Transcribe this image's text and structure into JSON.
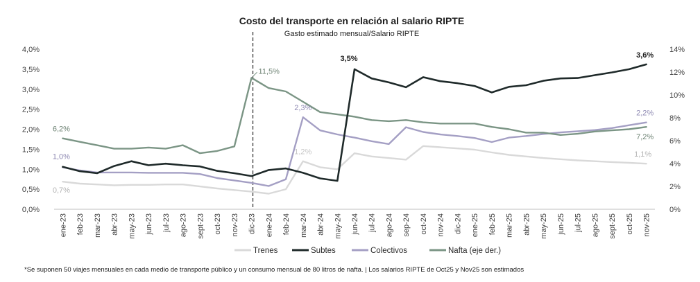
{
  "chart_data": {
    "type": "line",
    "title": "Costo del transporte en relación al salario RIPTE",
    "subtitle": "Gasto estimado mensual/Salario RIPTE",
    "categories": [
      "ene-23",
      "feb-23",
      "mar-23",
      "abr-23",
      "may-23",
      "jun-23",
      "jul-23",
      "ago-23",
      "sept-23",
      "oct-23",
      "nov-23",
      "dic-23",
      "ene-24",
      "feb-24",
      "mar-24",
      "abr-24",
      "may-24",
      "jun-24",
      "jul-24",
      "ago-24",
      "sep-24",
      "oct-24",
      "nov-24",
      "dic-24",
      "ene-25",
      "feb-25",
      "mar-25",
      "abr-25",
      "may-25",
      "jun-25",
      "jul-25",
      "ago-25",
      "sept-25",
      "oct-25",
      "nov-25"
    ],
    "y_left": {
      "min": 0,
      "max": 4,
      "ticks": [
        "0,0%",
        "0,5%",
        "1,0%",
        "1,5%",
        "2,0%",
        "2,5%",
        "3,0%",
        "3,5%",
        "4,0%"
      ]
    },
    "y_right": {
      "min": 0,
      "max": 14,
      "ticks": [
        "0%",
        "2%",
        "4%",
        "6%",
        "8%",
        "10%",
        "12%",
        "14%"
      ]
    },
    "series": [
      {
        "name": "Trenes",
        "axis": "left",
        "color": "#d9d9d9",
        "values": [
          0.69,
          0.64,
          0.62,
          0.6,
          0.61,
          0.61,
          0.62,
          0.62,
          0.57,
          0.52,
          0.48,
          0.44,
          0.39,
          0.5,
          1.2,
          1.05,
          1.0,
          1.4,
          1.32,
          1.28,
          1.24,
          1.58,
          1.55,
          1.52,
          1.49,
          1.42,
          1.36,
          1.32,
          1.28,
          1.25,
          1.22,
          1.2,
          1.18,
          1.16,
          1.14
        ]
      },
      {
        "name": "Subtes",
        "axis": "left",
        "color": "#1f2a2a",
        "values": [
          1.06,
          0.95,
          0.9,
          1.08,
          1.2,
          1.1,
          1.14,
          1.1,
          1.07,
          0.96,
          0.9,
          0.83,
          0.98,
          1.02,
          0.91,
          0.77,
          0.71,
          3.5,
          3.27,
          3.17,
          3.05,
          3.3,
          3.2,
          3.15,
          3.08,
          2.92,
          3.06,
          3.1,
          3.21,
          3.27,
          3.28,
          3.35,
          3.42,
          3.5,
          3.62
        ]
      },
      {
        "name": "Colectivos",
        "axis": "left",
        "color": "#a49fc4",
        "values": [
          1.05,
          0.97,
          0.92,
          0.92,
          0.92,
          0.91,
          0.91,
          0.91,
          0.88,
          0.78,
          0.72,
          0.66,
          0.58,
          0.75,
          2.3,
          1.97,
          1.87,
          1.79,
          1.7,
          1.63,
          2.05,
          1.93,
          1.87,
          1.83,
          1.78,
          1.68,
          1.79,
          1.83,
          1.88,
          1.92,
          1.95,
          1.98,
          2.03,
          2.1,
          2.17
        ]
      },
      {
        "name": "Nafta (eje der.)",
        "axis": "right",
        "color": "#7b9585",
        "values": [
          6.2,
          5.9,
          5.6,
          5.3,
          5.3,
          5.4,
          5.3,
          5.6,
          4.9,
          5.1,
          5.5,
          11.5,
          10.6,
          10.3,
          9.4,
          8.5,
          8.3,
          8.1,
          7.8,
          7.7,
          7.8,
          7.6,
          7.5,
          7.5,
          7.5,
          7.2,
          7.0,
          6.7,
          6.7,
          6.5,
          6.6,
          6.8,
          6.9,
          7.0,
          7.2
        ]
      }
    ],
    "data_labels": [
      {
        "series": 0,
        "index": 0,
        "text": "0,7%",
        "color": "#b3b3b3"
      },
      {
        "series": 0,
        "index": 14,
        "text": "1,2%",
        "color": "#c6c6c6"
      },
      {
        "series": 0,
        "index": 34,
        "text": "1,1%",
        "color": "#b3b3b3"
      },
      {
        "series": 1,
        "index": 17,
        "text": "3,5%",
        "color": "#1c1c1c"
      },
      {
        "series": 1,
        "index": 34,
        "text": "3,6%",
        "color": "#1c1c1c"
      },
      {
        "series": 2,
        "index": 0,
        "text": "1,0%",
        "color": "#8f8ab3"
      },
      {
        "series": 2,
        "index": 14,
        "text": "2,3%",
        "color": "#8f8ab3"
      },
      {
        "series": 2,
        "index": 34,
        "text": "2,2%",
        "color": "#8f8ab3"
      },
      {
        "series": 3,
        "index": 0,
        "text": "6,2%",
        "color": "#6d8273"
      },
      {
        "series": 3,
        "index": 11,
        "text": "11,5%",
        "color": "#6d8273"
      },
      {
        "series": 3,
        "index": 34,
        "text": "7,2%",
        "color": "#6d8273"
      }
    ],
    "marker_line_category": "dic-23",
    "legend": [
      "Trenes",
      "Subtes",
      "Colectivos",
      "Nafta (eje der.)"
    ],
    "legend_position": "bottom"
  },
  "footnote": "*Se suponen 50 viajes mensuales en cada medio de transporte público y un consumo mensual de 80 litros de nafta. | Los salarios RIPTE de Oct25 y Nov25 son estimados"
}
